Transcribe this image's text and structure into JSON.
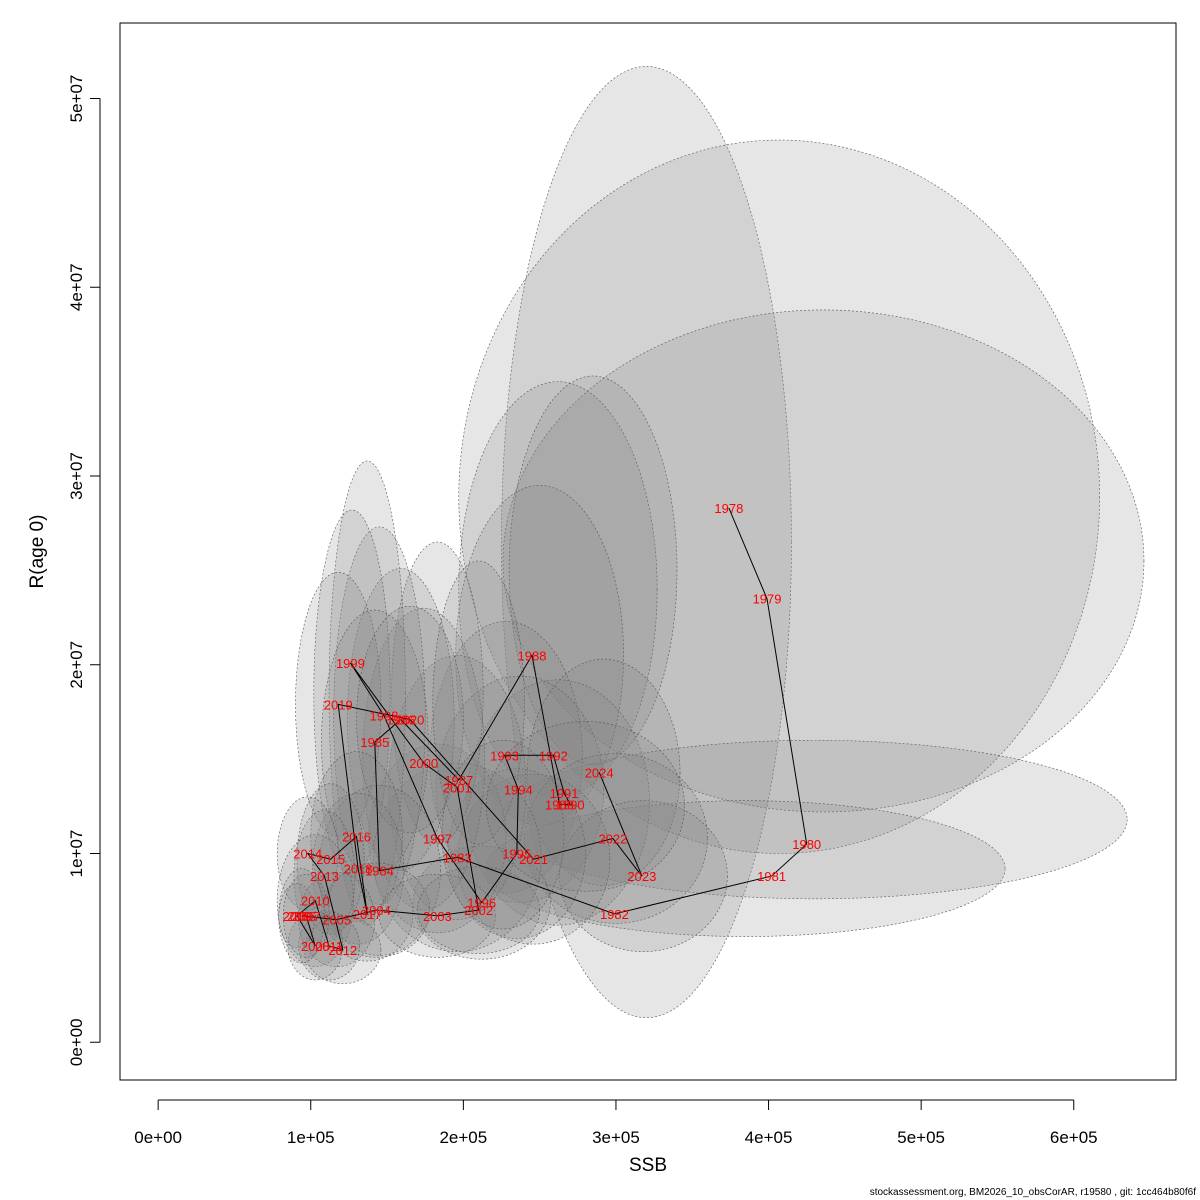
{
  "chart_data": {
    "type": "scatter",
    "xlabel": "SSB",
    "ylabel": "R(age 0)",
    "xlim": [
      -25000,
      667000
    ],
    "ylim": [
      -2000000,
      54000000
    ],
    "x_ticks": [
      0,
      100000,
      200000,
      300000,
      400000,
      500000,
      600000
    ],
    "x_tick_labels": [
      "0e+00",
      "1e+05",
      "2e+05",
      "3e+05",
      "4e+05",
      "5e+05",
      "6e+05"
    ],
    "y_ticks": [
      0,
      10000000,
      20000000,
      30000000,
      40000000,
      50000000
    ],
    "y_tick_labels": [
      "0e+00",
      "1e+07",
      "2e+07",
      "3e+07",
      "4e+07",
      "5e+07"
    ],
    "grid": false,
    "line_connects_points": true,
    "label_color": "#ff0000",
    "ellipse_fill": "#808080",
    "points": [
      {
        "year": "1978",
        "x": 374000,
        "y": 28300000
      },
      {
        "year": "1979",
        "x": 399000,
        "y": 23500000
      },
      {
        "year": "1980",
        "x": 425000,
        "y": 10500000
      },
      {
        "year": "1981",
        "x": 402000,
        "y": 8800000
      },
      {
        "year": "1982",
        "x": 299000,
        "y": 6800000
      },
      {
        "year": "1983",
        "x": 196000,
        "y": 9800000
      },
      {
        "year": "1984",
        "x": 145000,
        "y": 9100000
      },
      {
        "year": "1985",
        "x": 142000,
        "y": 15900000
      },
      {
        "year": "1986",
        "x": 159000,
        "y": 17100000
      },
      {
        "year": "1987",
        "x": 197000,
        "y": 13900000
      },
      {
        "year": "1988",
        "x": 245000,
        "y": 20500000
      },
      {
        "year": "1989",
        "x": 263000,
        "y": 12600000
      },
      {
        "year": "1990",
        "x": 270000,
        "y": 12600000
      },
      {
        "year": "1991",
        "x": 266000,
        "y": 13200000
      },
      {
        "year": "1992",
        "x": 259000,
        "y": 15200000
      },
      {
        "year": "1993",
        "x": 227000,
        "y": 15200000
      },
      {
        "year": "1994",
        "x": 236000,
        "y": 13400000
      },
      {
        "year": "1995",
        "x": 235000,
        "y": 10000000
      },
      {
        "year": "1996",
        "x": 212000,
        "y": 7400000
      },
      {
        "year": "1997",
        "x": 183000,
        "y": 10800000
      },
      {
        "year": "1998",
        "x": 148000,
        "y": 17300000
      },
      {
        "year": "1999",
        "x": 126000,
        "y": 20100000
      },
      {
        "year": "2000",
        "x": 174000,
        "y": 14800000
      },
      {
        "year": "2001",
        "x": 196000,
        "y": 13500000
      },
      {
        "year": "2002",
        "x": 210000,
        "y": 7000000
      },
      {
        "year": "2003",
        "x": 183000,
        "y": 6700000
      },
      {
        "year": "2004",
        "x": 143000,
        "y": 7000000
      },
      {
        "year": "2005",
        "x": 117000,
        "y": 6500000
      },
      {
        "year": "2006",
        "x": 94000,
        "y": 6700000
      },
      {
        "year": "2007",
        "x": 97000,
        "y": 6700000
      },
      {
        "year": "2008",
        "x": 103000,
        "y": 5100000
      },
      {
        "year": "2009",
        "x": 91000,
        "y": 6700000
      },
      {
        "year": "2010",
        "x": 103000,
        "y": 7500000
      },
      {
        "year": "2011",
        "x": 112000,
        "y": 5100000
      },
      {
        "year": "2012",
        "x": 121000,
        "y": 4900000
      },
      {
        "year": "2013",
        "x": 109000,
        "y": 8800000
      },
      {
        "year": "2014",
        "x": 98000,
        "y": 10000000
      },
      {
        "year": "2015",
        "x": 113000,
        "y": 9700000
      },
      {
        "year": "2016",
        "x": 130000,
        "y": 10900000
      },
      {
        "year": "2017",
        "x": 137000,
        "y": 6800000
      },
      {
        "year": "2018",
        "x": 131000,
        "y": 9200000
      },
      {
        "year": "2019",
        "x": 118000,
        "y": 17900000
      },
      {
        "year": "2020",
        "x": 165000,
        "y": 17100000
      },
      {
        "year": "2021",
        "x": 246000,
        "y": 9700000
      },
      {
        "year": "2022",
        "x": 298000,
        "y": 10800000
      },
      {
        "year": "2023",
        "x": 317000,
        "y": 8800000
      },
      {
        "year": "2024",
        "x": 289000,
        "y": 14300000
      }
    ],
    "ellipses": [
      {
        "cx": 320000,
        "cy": 26500000,
        "rx": 95000,
        "ry": 25200000
      },
      {
        "cx": 407000,
        "cy": 28900000,
        "rx": 210000,
        "ry": 18900000
      },
      {
        "cx": 436000,
        "cy": 25500000,
        "rx": 210000,
        "ry": 13300000
      },
      {
        "cx": 430000,
        "cy": 11800000,
        "rx": 205000,
        "ry": 4200000
      },
      {
        "cx": 385000,
        "cy": 9200000,
        "rx": 170000,
        "ry": 3600000
      },
      {
        "cx": 262000,
        "cy": 24000000,
        "rx": 65000,
        "ry": 11000000
      },
      {
        "cx": 285000,
        "cy": 25000000,
        "rx": 55000,
        "ry": 10300000
      },
      {
        "cx": 250000,
        "cy": 20500000,
        "rx": 55000,
        "ry": 9000000
      },
      {
        "cx": 262000,
        "cy": 12700000,
        "rx": 60000,
        "ry": 6500000
      },
      {
        "cx": 228000,
        "cy": 15100000,
        "rx": 50000,
        "ry": 7200000
      },
      {
        "cx": 237000,
        "cy": 13400000,
        "rx": 55000,
        "ry": 6000000
      },
      {
        "cx": 292000,
        "cy": 14300000,
        "rx": 50000,
        "ry": 6000000
      },
      {
        "cx": 300000,
        "cy": 10800000,
        "rx": 60000,
        "ry": 4500000
      },
      {
        "cx": 318000,
        "cy": 8800000,
        "rx": 55000,
        "ry": 4000000
      },
      {
        "cx": 246000,
        "cy": 9700000,
        "rx": 50000,
        "ry": 4500000
      },
      {
        "cx": 235000,
        "cy": 10000000,
        "rx": 45000,
        "ry": 4500000
      },
      {
        "cx": 212000,
        "cy": 7400000,
        "rx": 45000,
        "ry": 3000000
      },
      {
        "cx": 196000,
        "cy": 9800000,
        "rx": 55000,
        "ry": 5000000
      },
      {
        "cx": 183000,
        "cy": 10800000,
        "rx": 45000,
        "ry": 5000000
      },
      {
        "cx": 196000,
        "cy": 13500000,
        "rx": 45000,
        "ry": 7000000
      },
      {
        "cx": 174000,
        "cy": 15000000,
        "rx": 40000,
        "ry": 8000000
      },
      {
        "cx": 183000,
        "cy": 18500000,
        "rx": 30000,
        "ry": 8000000
      },
      {
        "cx": 159000,
        "cy": 17100000,
        "rx": 35000,
        "ry": 8000000
      },
      {
        "cx": 145000,
        "cy": 17300000,
        "rx": 30000,
        "ry": 10000000
      },
      {
        "cx": 137000,
        "cy": 18500000,
        "rx": 25000,
        "ry": 12300000
      },
      {
        "cx": 127000,
        "cy": 18500000,
        "rx": 25000,
        "ry": 9700000
      },
      {
        "cx": 118000,
        "cy": 17900000,
        "rx": 28000,
        "ry": 7000000
      },
      {
        "cx": 142000,
        "cy": 15900000,
        "rx": 35000,
        "ry": 7000000
      },
      {
        "cx": 165000,
        "cy": 17100000,
        "rx": 35000,
        "ry": 6000000
      },
      {
        "cx": 210000,
        "cy": 18000000,
        "rx": 30000,
        "ry": 7500000
      },
      {
        "cx": 145000,
        "cy": 9100000,
        "rx": 40000,
        "ry": 4500000
      },
      {
        "cx": 131000,
        "cy": 9200000,
        "rx": 30000,
        "ry": 4000000
      },
      {
        "cx": 130000,
        "cy": 10900000,
        "rx": 30000,
        "ry": 4500000
      },
      {
        "cx": 137000,
        "cy": 6800000,
        "rx": 30000,
        "ry": 2500000
      },
      {
        "cx": 143000,
        "cy": 7000000,
        "rx": 35000,
        "ry": 2500000
      },
      {
        "cx": 183000,
        "cy": 6700000,
        "rx": 38000,
        "ry": 2200000
      },
      {
        "cx": 210000,
        "cy": 7000000,
        "rx": 40000,
        "ry": 2300000
      },
      {
        "cx": 113000,
        "cy": 9700000,
        "rx": 22000,
        "ry": 4000000
      },
      {
        "cx": 109000,
        "cy": 8800000,
        "rx": 20000,
        "ry": 3500000
      },
      {
        "cx": 98000,
        "cy": 10000000,
        "rx": 20000,
        "ry": 3000000
      },
      {
        "cx": 103000,
        "cy": 7500000,
        "rx": 25000,
        "ry": 3500000
      },
      {
        "cx": 117000,
        "cy": 6500000,
        "rx": 25000,
        "ry": 2500000
      },
      {
        "cx": 121000,
        "cy": 4900000,
        "rx": 25000,
        "ry": 1800000
      },
      {
        "cx": 112000,
        "cy": 5100000,
        "rx": 20000,
        "ry": 1800000
      },
      {
        "cx": 103000,
        "cy": 5100000,
        "rx": 18000,
        "ry": 1800000
      },
      {
        "cx": 94000,
        "cy": 6700000,
        "rx": 15000,
        "ry": 2500000
      },
      {
        "cx": 91000,
        "cy": 6700000,
        "rx": 12000,
        "ry": 1700000
      },
      {
        "cx": 97000,
        "cy": 6700000,
        "rx": 15000,
        "ry": 2200000
      },
      {
        "cx": 226000,
        "cy": 11000000,
        "rx": 40000,
        "ry": 5000000
      },
      {
        "cx": 280000,
        "cy": 12500000,
        "rx": 65000,
        "ry": 4500000
      }
    ]
  },
  "footer": {
    "text": "stockassessment.org, BM2026_10_obsCorAR, r19580 , git: 1cc464b80f6f"
  }
}
